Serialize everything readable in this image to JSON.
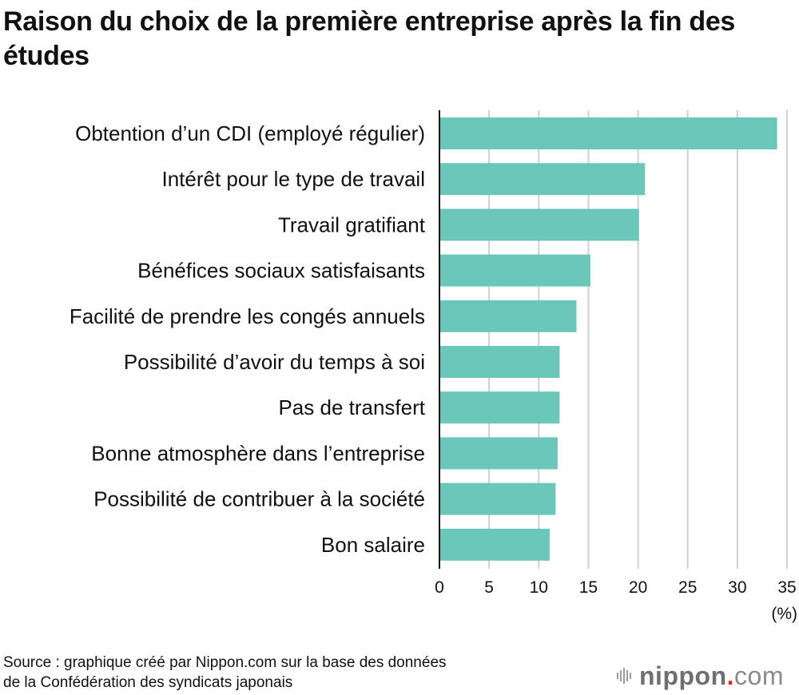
{
  "chart_data": {
    "type": "bar",
    "orientation": "horizontal",
    "title": "Raison du choix de la première entreprise après la fin des études",
    "categories": [
      "Obtention d’un CDI (employé régulier)",
      "Intérêt pour le type de travail",
      "Travail gratifiant",
      "Bénéfices sociaux satisfaisants",
      "Facilité de prendre les congés annuels",
      "Possibilité d’avoir du temps à soi",
      "Pas de transfert",
      "Bonne atmosphère dans l’entreprise",
      "Possibilité de contribuer à la société",
      "Bon salaire"
    ],
    "values": [
      34.0,
      20.7,
      20.1,
      15.2,
      13.8,
      12.1,
      12.1,
      11.9,
      11.7,
      11.1
    ],
    "xlabel": "(%)",
    "ylabel": "",
    "xlim": [
      0,
      35
    ],
    "xticks": [
      "0",
      "5",
      "10",
      "15",
      "20",
      "25",
      "30",
      "35"
    ],
    "grid": true,
    "bar_color": "#6ac7ba",
    "grid_color": "#d0d0d0",
    "legend": "none"
  },
  "footer": {
    "source_line1": "Source : graphique créé par Nippon.com sur la base des données",
    "source_line2": "de la Confédération des syndicats japonais",
    "logo_word": "nippon",
    "logo_dot": ".",
    "logo_suffix": "com",
    "logo_accent": "#e0281e"
  }
}
